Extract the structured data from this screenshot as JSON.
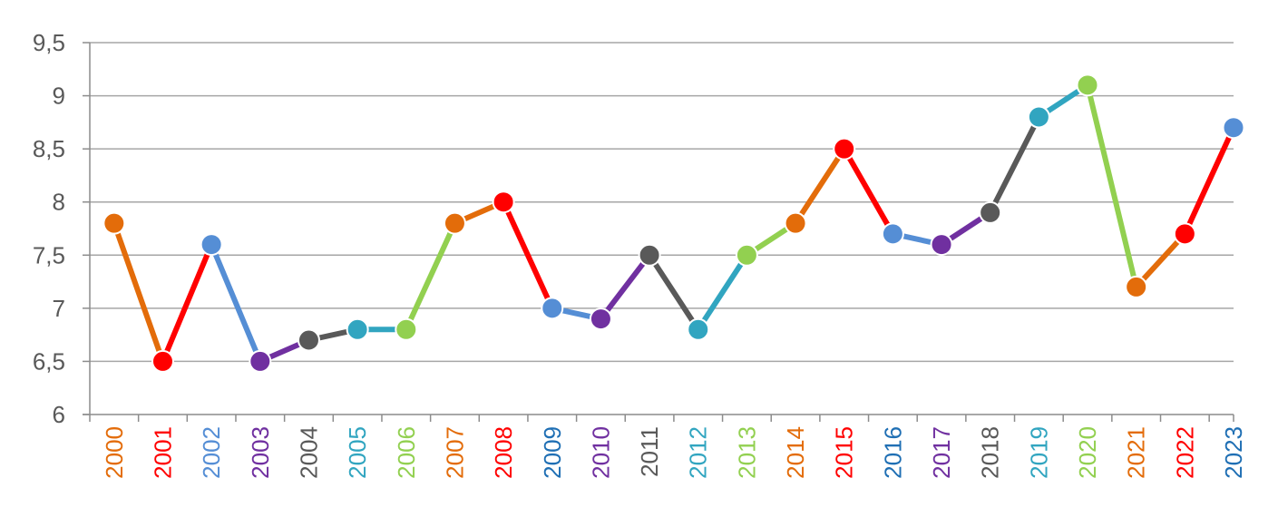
{
  "chart_data": {
    "type": "line",
    "title": "",
    "xlabel": "",
    "ylabel": "",
    "ylim": [
      6,
      9.5
    ],
    "ytick_labels": [
      "6",
      "6,5",
      "7",
      "7,5",
      "8",
      "8,5",
      "9",
      "9,5"
    ],
    "grid": "horizontal",
    "legend": "none",
    "categories": [
      "2000",
      "2001",
      "2002",
      "2003",
      "2004",
      "2005",
      "2006",
      "2007",
      "2008",
      "2009",
      "2010",
      "2011",
      "2012",
      "2013",
      "2014",
      "2015",
      "2016",
      "2017",
      "2018",
      "2019",
      "2020",
      "2021",
      "2022",
      "2023"
    ],
    "values": [
      7.8,
      6.5,
      7.6,
      6.5,
      6.7,
      6.8,
      6.8,
      7.8,
      8.0,
      7.0,
      6.9,
      7.5,
      6.8,
      7.5,
      7.8,
      8.5,
      7.7,
      7.6,
      7.9,
      8.8,
      9.1,
      7.2,
      7.7,
      8.7
    ],
    "marker_colors": [
      "#e36c0a",
      "#ff0000",
      "#558ed5",
      "#7030a0",
      "#595959",
      "#31a5c0",
      "#92d050",
      "#e36c0a",
      "#ff0000",
      "#558ed5",
      "#7030a0",
      "#595959",
      "#31a5c0",
      "#92d050",
      "#e36c0a",
      "#ff0000",
      "#558ed5",
      "#7030a0",
      "#595959",
      "#31a5c0",
      "#92d050",
      "#e36c0a",
      "#ff0000",
      "#558ed5"
    ],
    "label_colors": [
      "#e36c0a",
      "#ff0000",
      "#558ed5",
      "#7030a0",
      "#595959",
      "#31a5c0",
      "#92d050",
      "#e36c0a",
      "#ff0000",
      "#1f6fb4",
      "#7030a0",
      "#595959",
      "#31a5c0",
      "#92d050",
      "#e36c0a",
      "#ff0000",
      "#1f6fb4",
      "#7030a0",
      "#595959",
      "#31a5c0",
      "#92d050",
      "#e36c0a",
      "#ff0000",
      "#1f6fb4"
    ],
    "gridline_color": "#a6a6a6",
    "axis_color": "#8c8c8c"
  }
}
